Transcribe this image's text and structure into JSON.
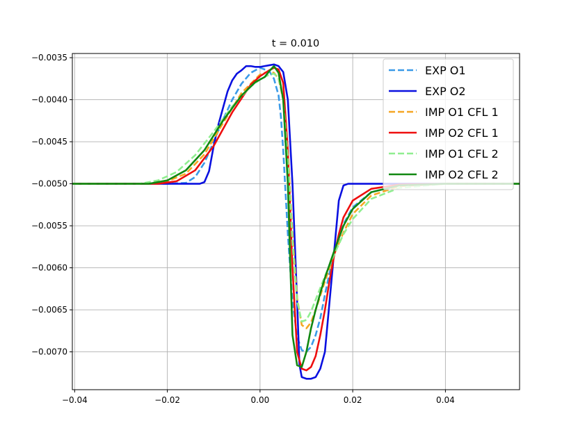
{
  "chart_data": {
    "type": "line",
    "title": "t = 0.010",
    "xlabel": "",
    "ylabel": "",
    "xlim": [
      -0.0405,
      0.056
    ],
    "ylim": [
      -0.00745,
      -0.00345
    ],
    "xticks": [
      -0.04,
      -0.02,
      0.0,
      0.02,
      0.04
    ],
    "xtick_labels": [
      "−0.04",
      "−0.02",
      "0.00",
      "0.02",
      "0.04"
    ],
    "yticks": [
      -0.0035,
      -0.004,
      -0.0045,
      -0.005,
      -0.0055,
      -0.006,
      -0.0065,
      -0.007
    ],
    "ytick_labels": [
      "−0.0035",
      "−0.0040",
      "−0.0045",
      "−0.0050",
      "−0.0055",
      "−0.0060",
      "−0.0065",
      "−0.0070"
    ],
    "grid": true,
    "legend_position": "top-right",
    "series": [
      {
        "name": "EXP O1",
        "color": "#3a9ae8",
        "dash": true,
        "x": [
          -0.0405,
          -0.02,
          -0.016,
          -0.014,
          -0.012,
          -0.01,
          -0.008,
          -0.006,
          -0.004,
          -0.002,
          0.0,
          0.002,
          0.003,
          0.004,
          0.0045,
          0.005,
          0.006,
          0.007,
          0.008,
          0.009,
          0.01,
          0.011,
          0.012,
          0.013,
          0.014,
          0.016,
          0.018,
          0.02,
          0.024,
          0.03,
          0.04,
          0.056
        ],
        "y": [
          -0.005,
          -0.005,
          -0.00499,
          -0.00492,
          -0.00475,
          -0.0045,
          -0.00424,
          -0.004,
          -0.00381,
          -0.00368,
          -0.00362,
          -0.00366,
          -0.00375,
          -0.00395,
          -0.0042,
          -0.0046,
          -0.0056,
          -0.0064,
          -0.00682,
          -0.00698,
          -0.007,
          -0.00694,
          -0.0068,
          -0.0066,
          -0.00632,
          -0.0058,
          -0.00548,
          -0.00528,
          -0.0051,
          -0.00502,
          -0.005,
          -0.005
        ]
      },
      {
        "name": "EXP O2",
        "color": "#0a10e0",
        "dash": false,
        "x": [
          -0.0405,
          -0.013,
          -0.012,
          -0.011,
          -0.01,
          -0.009,
          -0.008,
          -0.007,
          -0.006,
          -0.005,
          -0.004,
          -0.003,
          -0.002,
          -0.001,
          0.0,
          0.001,
          0.002,
          0.003,
          0.004,
          0.005,
          0.006,
          0.007,
          0.008,
          0.0085,
          0.009,
          0.01,
          0.011,
          0.012,
          0.013,
          0.014,
          0.015,
          0.016,
          0.017,
          0.018,
          0.019,
          0.056
        ],
        "y": [
          -0.005,
          -0.005,
          -0.00498,
          -0.00485,
          -0.00455,
          -0.0043,
          -0.0041,
          -0.0039,
          -0.00377,
          -0.00369,
          -0.00365,
          -0.0036,
          -0.0036,
          -0.00361,
          -0.00361,
          -0.0036,
          -0.00359,
          -0.00358,
          -0.0036,
          -0.00367,
          -0.004,
          -0.005,
          -0.0064,
          -0.00715,
          -0.0073,
          -0.00732,
          -0.00732,
          -0.0073,
          -0.0072,
          -0.007,
          -0.0064,
          -0.0058,
          -0.0052,
          -0.00502,
          -0.005,
          -0.005
        ]
      },
      {
        "name": "IMP O1 CFL 1",
        "color": "#f5a623",
        "dash": true,
        "x": [
          -0.0405,
          -0.024,
          -0.02,
          -0.016,
          -0.012,
          -0.008,
          -0.004,
          0.0,
          0.002,
          0.003,
          0.004,
          0.005,
          0.006,
          0.007,
          0.008,
          0.009,
          0.01,
          0.011,
          0.012,
          0.013,
          0.014,
          0.016,
          0.018,
          0.02,
          0.024,
          0.03,
          0.04,
          0.056
        ],
        "y": [
          -0.005,
          -0.005,
          -0.00497,
          -0.00488,
          -0.00465,
          -0.00428,
          -0.00392,
          -0.0037,
          -0.00366,
          -0.00368,
          -0.00375,
          -0.004,
          -0.0046,
          -0.0056,
          -0.00636,
          -0.00668,
          -0.00672,
          -0.00665,
          -0.0065,
          -0.00633,
          -0.00616,
          -0.00584,
          -0.00558,
          -0.00536,
          -0.00514,
          -0.00503,
          -0.005,
          -0.005
        ]
      },
      {
        "name": "IMP O2 CFL 1",
        "color": "#ee0e0e",
        "dash": false,
        "x": [
          -0.0405,
          -0.022,
          -0.018,
          -0.014,
          -0.01,
          -0.006,
          -0.002,
          0.0,
          0.002,
          0.003,
          0.004,
          0.005,
          0.006,
          0.007,
          0.008,
          0.009,
          0.01,
          0.011,
          0.012,
          0.013,
          0.014,
          0.015,
          0.016,
          0.017,
          0.018,
          0.02,
          0.024,
          0.03,
          0.04,
          0.056
        ],
        "y": [
          -0.005,
          -0.005,
          -0.00497,
          -0.00484,
          -0.00455,
          -0.00415,
          -0.00382,
          -0.00372,
          -0.00365,
          -0.00362,
          -0.00364,
          -0.0038,
          -0.0046,
          -0.006,
          -0.007,
          -0.0072,
          -0.00722,
          -0.00718,
          -0.00705,
          -0.0068,
          -0.0065,
          -0.00615,
          -0.00585,
          -0.0056,
          -0.0054,
          -0.0052,
          -0.00506,
          -0.00501,
          -0.005,
          -0.005
        ]
      },
      {
        "name": "IMP O1 CFL 2",
        "color": "#90ee90",
        "dash": true,
        "x": [
          -0.0405,
          -0.026,
          -0.022,
          -0.018,
          -0.014,
          -0.01,
          -0.006,
          -0.002,
          0.0,
          0.002,
          0.003,
          0.004,
          0.005,
          0.006,
          0.007,
          0.008,
          0.009,
          0.01,
          0.011,
          0.012,
          0.013,
          0.014,
          0.016,
          0.018,
          0.02,
          0.024,
          0.03,
          0.04,
          0.056
        ],
        "y": [
          -0.005,
          -0.005,
          -0.00496,
          -0.00486,
          -0.00466,
          -0.00438,
          -0.00408,
          -0.00384,
          -0.00376,
          -0.0037,
          -0.00369,
          -0.00374,
          -0.004,
          -0.0047,
          -0.0057,
          -0.0064,
          -0.00664,
          -0.00662,
          -0.00652,
          -0.00638,
          -0.00624,
          -0.0061,
          -0.00584,
          -0.0056,
          -0.00542,
          -0.00518,
          -0.00505,
          -0.005,
          -0.005
        ]
      },
      {
        "name": "IMP O2 CFL 2",
        "color": "#118811",
        "dash": false,
        "x": [
          -0.0405,
          -0.024,
          -0.02,
          -0.016,
          -0.012,
          -0.008,
          -0.004,
          -0.001,
          0.001,
          0.002,
          0.003,
          0.004,
          0.005,
          0.006,
          0.007,
          0.008,
          0.009,
          0.01,
          0.011,
          0.012,
          0.013,
          0.014,
          0.016,
          0.018,
          0.02,
          0.024,
          0.03,
          0.04,
          0.056
        ],
        "y": [
          -0.005,
          -0.005,
          -0.00496,
          -0.00484,
          -0.0046,
          -0.00425,
          -0.00395,
          -0.00379,
          -0.00373,
          -0.00366,
          -0.0036,
          -0.00368,
          -0.004,
          -0.005,
          -0.0068,
          -0.00716,
          -0.00718,
          -0.007,
          -0.00672,
          -0.0065,
          -0.0063,
          -0.00612,
          -0.0058,
          -0.0055,
          -0.0053,
          -0.0051,
          -0.00502,
          -0.005,
          -0.005
        ]
      }
    ]
  }
}
